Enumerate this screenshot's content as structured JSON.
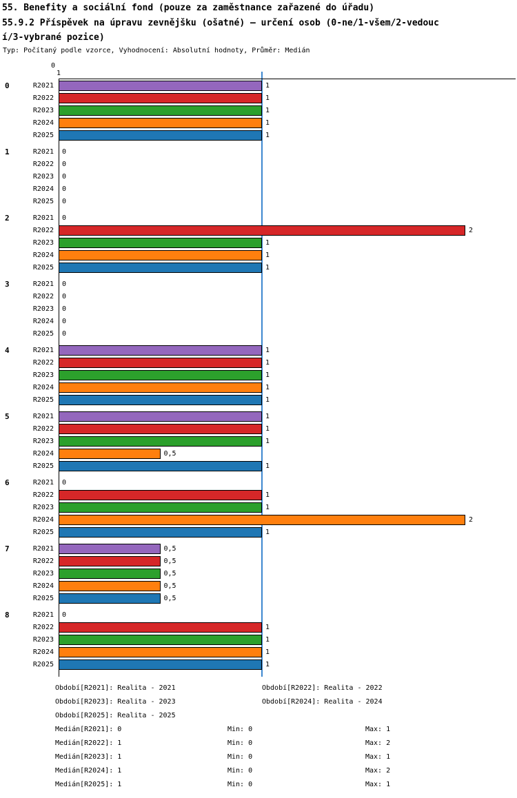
{
  "chart_data": {
    "type": "bar",
    "orientation": "horizontal",
    "title": "55. Benefity a sociální fond (pouze za zaměstnance zařazené do úřadu)",
    "subtitle_wrap_line1": "55.9.2 Příspěvek na úpravu zevnějšku (ošatné) – určení osob (0-ne/1-všem/2-vedouc",
    "subtitle_wrap_line2": "í/3-vybrané pozice)",
    "meta_line": "Typ: Počítaný podle vzorce, Vyhodnocení: Absolutní hodnoty, Průměr: Medián",
    "value_axis": {
      "min": 0,
      "max": 2,
      "top_tick_labels": [
        "0",
        "1"
      ],
      "reference_line_value": 1
    },
    "reference_line_color": "#3d87cf",
    "series": [
      "R2021",
      "R2022",
      "R2023",
      "R2024",
      "R2025"
    ],
    "series_colors": [
      "#9467bd",
      "#d62728",
      "#2ca02c",
      "#ff7f0e",
      "#1f77b4"
    ],
    "decimal_separator": ",",
    "groups": [
      {
        "label": "0",
        "values": [
          1,
          1,
          1,
          1,
          1
        ]
      },
      {
        "label": "1",
        "values": [
          0,
          0,
          0,
          0,
          0
        ]
      },
      {
        "label": "2",
        "values": [
          0,
          2,
          1,
          1,
          1
        ]
      },
      {
        "label": "3",
        "values": [
          0,
          0,
          0,
          0,
          0
        ]
      },
      {
        "label": "4",
        "values": [
          1,
          1,
          1,
          1,
          1
        ]
      },
      {
        "label": "5",
        "values": [
          1,
          1,
          1,
          0.5,
          1
        ]
      },
      {
        "label": "6",
        "values": [
          0,
          1,
          1,
          2,
          1
        ]
      },
      {
        "label": "7",
        "values": [
          0.5,
          0.5,
          0.5,
          0.5,
          0.5
        ]
      },
      {
        "label": "8",
        "values": [
          0,
          1,
          1,
          1,
          1
        ]
      }
    ]
  },
  "legend": {
    "periods": [
      {
        "label": "Období[R2021]:",
        "value": "Realita - 2021"
      },
      {
        "label": "Období[R2022]:",
        "value": "Realita - 2022"
      },
      {
        "label": "Období[R2023]:",
        "value": "Realita - 2023"
      },
      {
        "label": "Období[R2024]:",
        "value": "Realita - 2024"
      },
      {
        "label": "Období[R2025]:",
        "value": "Realita - 2025"
      }
    ],
    "stats": [
      {
        "label": "Medián[R2021]:",
        "value": "0",
        "min_label": "Min:",
        "min": "0",
        "max_label": "Max:",
        "max": "1"
      },
      {
        "label": "Medián[R2022]:",
        "value": "1",
        "min_label": "Min:",
        "min": "0",
        "max_label": "Max:",
        "max": "2"
      },
      {
        "label": "Medián[R2023]:",
        "value": "1",
        "min_label": "Min:",
        "min": "0",
        "max_label": "Max:",
        "max": "1"
      },
      {
        "label": "Medián[R2024]:",
        "value": "1",
        "min_label": "Min:",
        "min": "0",
        "max_label": "Max:",
        "max": "2"
      },
      {
        "label": "Medián[R2025]:",
        "value": "1",
        "min_label": "Min:",
        "min": "0",
        "max_label": "Max:",
        "max": "1"
      }
    ]
  }
}
